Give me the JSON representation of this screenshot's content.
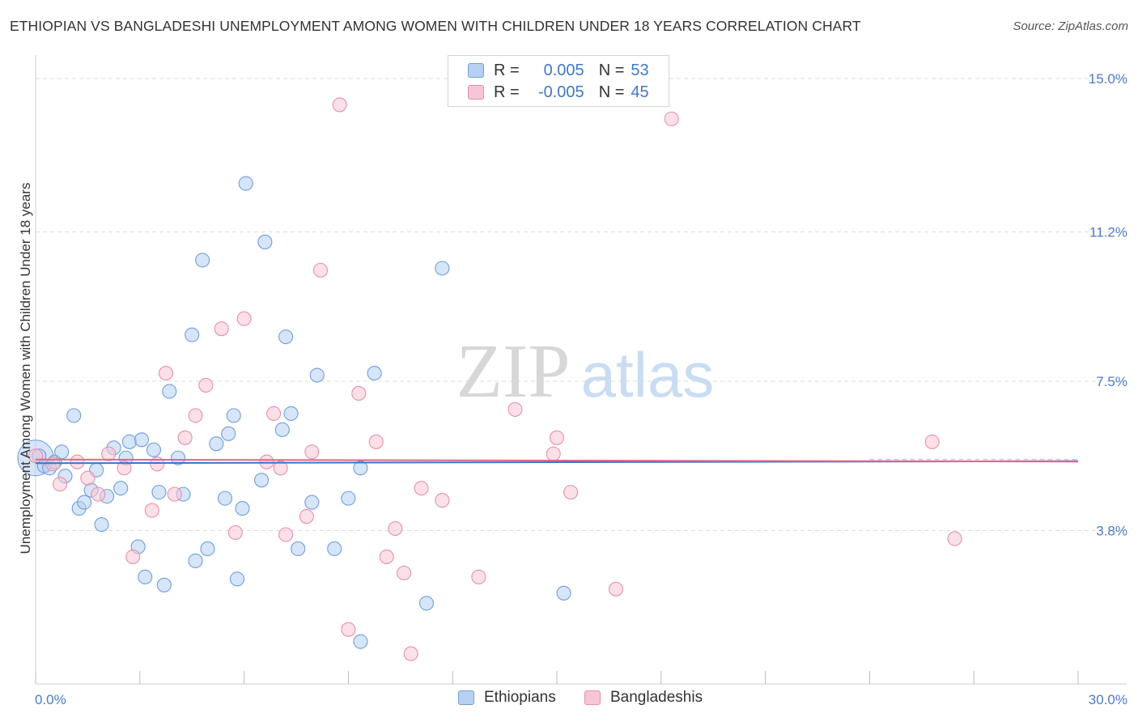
{
  "title": "ETHIOPIAN VS BANGLADESHI UNEMPLOYMENT AMONG WOMEN WITH CHILDREN UNDER 18 YEARS CORRELATION CHART",
  "source": "Source: ZipAtlas.com",
  "watermark": {
    "zip": "ZIP",
    "atlas": "atlas"
  },
  "legend": {
    "r_label": "R =",
    "n_label": "N =",
    "rows": [
      {
        "r": "0.005",
        "n": "53"
      },
      {
        "r": "-0.005",
        "n": "45"
      }
    ]
  },
  "colors": {
    "ethiopians_fill": "#b7d0f2",
    "ethiopians_stroke": "#6f9fdb",
    "ethiopians_line": "#3a74d0",
    "bangladeshis_fill": "#f7c6d6",
    "bangladeshis_stroke": "#e88fab",
    "bangladeshis_line": "#e0658d",
    "grid": "#dddddd",
    "tick_label": "#4a7cc9"
  },
  "chart_data": {
    "type": "scatter",
    "title": "ETHIOPIAN VS BANGLADESHI UNEMPLOYMENT AMONG WOMEN WITH CHILDREN UNDER 18 YEARS CORRELATION CHART",
    "xlabel": "",
    "ylabel": "Unemployment Among Women with Children Under 18 years",
    "xlim": [
      0,
      30
    ],
    "ylim": [
      0,
      15.5
    ],
    "x_tick_labels": [
      "0.0%",
      "30.0%"
    ],
    "y_ticks": [
      3.8,
      7.5,
      11.2,
      15.0
    ],
    "y_tick_labels": [
      "3.8%",
      "7.5%",
      "11.2%",
      "15.0%"
    ],
    "grid": true,
    "legend_position": "top-center",
    "series": [
      {
        "name": "Ethiopians",
        "r": 0.005,
        "n": 53,
        "trend": [
          [
            0,
            5.47
          ],
          [
            30,
            5.52
          ]
        ],
        "points": [
          [
            0.1,
            5.65
          ],
          [
            0.25,
            5.4
          ],
          [
            0.4,
            5.35
          ],
          [
            0.55,
            5.5
          ],
          [
            0.75,
            5.75
          ],
          [
            0.85,
            5.15
          ],
          [
            1.1,
            6.65
          ],
          [
            1.25,
            4.35
          ],
          [
            1.4,
            4.5
          ],
          [
            1.6,
            4.8
          ],
          [
            1.75,
            5.3
          ],
          [
            1.9,
            3.95
          ],
          [
            2.05,
            4.65
          ],
          [
            2.25,
            5.85
          ],
          [
            2.45,
            4.85
          ],
          [
            2.6,
            5.6
          ],
          [
            2.7,
            6.0
          ],
          [
            2.95,
            3.4
          ],
          [
            3.05,
            6.05
          ],
          [
            3.15,
            2.65
          ],
          [
            3.4,
            5.8
          ],
          [
            3.55,
            4.75
          ],
          [
            3.7,
            2.45
          ],
          [
            3.85,
            7.25
          ],
          [
            4.1,
            5.6
          ],
          [
            4.25,
            4.7
          ],
          [
            4.5,
            8.65
          ],
          [
            4.6,
            3.05
          ],
          [
            4.8,
            10.5
          ],
          [
            4.95,
            3.35
          ],
          [
            5.2,
            5.95
          ],
          [
            5.45,
            4.6
          ],
          [
            5.55,
            6.2
          ],
          [
            5.7,
            6.65
          ],
          [
            5.8,
            2.6
          ],
          [
            5.95,
            4.35
          ],
          [
            6.05,
            12.4
          ],
          [
            6.5,
            5.05
          ],
          [
            6.6,
            10.95
          ],
          [
            7.1,
            6.3
          ],
          [
            7.2,
            8.6
          ],
          [
            7.35,
            6.7
          ],
          [
            7.55,
            3.35
          ],
          [
            7.95,
            4.5
          ],
          [
            8.1,
            7.65
          ],
          [
            8.6,
            3.35
          ],
          [
            9.0,
            4.6
          ],
          [
            9.35,
            5.35
          ],
          [
            9.35,
            1.05
          ],
          [
            9.75,
            7.7
          ],
          [
            11.25,
            2.0
          ],
          [
            11.7,
            10.3
          ],
          [
            15.2,
            2.25
          ]
        ]
      },
      {
        "name": "Bangladeshis",
        "r": -0.005,
        "n": 45,
        "trend": [
          [
            0,
            5.56
          ],
          [
            30,
            5.51
          ]
        ],
        "points": [
          [
            0.0,
            5.65
          ],
          [
            0.5,
            5.45
          ],
          [
            0.7,
            4.95
          ],
          [
            1.2,
            5.5
          ],
          [
            1.5,
            5.1
          ],
          [
            1.8,
            4.7
          ],
          [
            2.1,
            5.7
          ],
          [
            2.55,
            5.35
          ],
          [
            2.8,
            3.15
          ],
          [
            3.35,
            4.3
          ],
          [
            3.5,
            5.45
          ],
          [
            3.75,
            7.7
          ],
          [
            4.0,
            4.7
          ],
          [
            4.3,
            6.1
          ],
          [
            4.6,
            6.65
          ],
          [
            4.9,
            7.4
          ],
          [
            5.35,
            8.8
          ],
          [
            5.75,
            3.75
          ],
          [
            6.0,
            9.05
          ],
          [
            6.65,
            5.5
          ],
          [
            6.85,
            6.7
          ],
          [
            7.05,
            5.35
          ],
          [
            7.2,
            3.7
          ],
          [
            7.8,
            4.15
          ],
          [
            7.95,
            5.75
          ],
          [
            8.2,
            10.25
          ],
          [
            8.75,
            14.35
          ],
          [
            9.0,
            1.35
          ],
          [
            9.3,
            7.2
          ],
          [
            9.8,
            6.0
          ],
          [
            10.1,
            3.15
          ],
          [
            10.35,
            3.85
          ],
          [
            10.6,
            2.75
          ],
          [
            10.8,
            0.75
          ],
          [
            11.1,
            4.85
          ],
          [
            11.7,
            4.55
          ],
          [
            12.75,
            2.65
          ],
          [
            13.8,
            6.8
          ],
          [
            14.9,
            5.7
          ],
          [
            15.0,
            6.1
          ],
          [
            15.4,
            4.75
          ],
          [
            16.7,
            2.35
          ],
          [
            18.3,
            14.0
          ],
          [
            25.8,
            6.0
          ],
          [
            26.45,
            3.6
          ]
        ]
      }
    ]
  },
  "bottom_legend": [
    "Ethiopians",
    "Bangladeshis"
  ]
}
